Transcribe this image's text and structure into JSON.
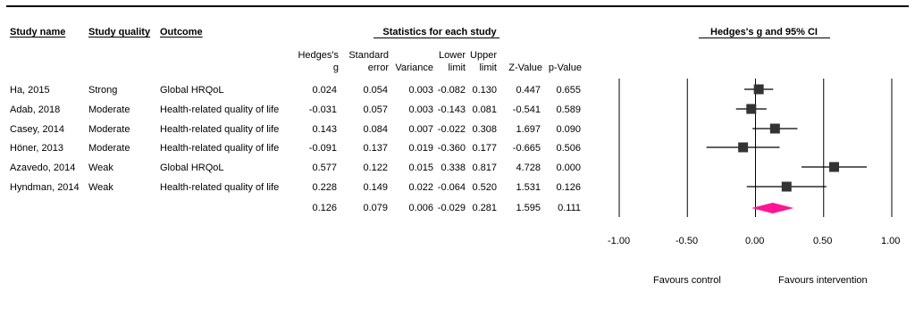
{
  "headers": {
    "study_name": "Study name",
    "study_quality": "Study quality",
    "outcome": "Outcome",
    "stats_group": "Statistics for each study",
    "plot_group": "Hedges's g and 95% CI"
  },
  "stat_columns": [
    {
      "line1": "Hedges's",
      "line2": "g"
    },
    {
      "line1": "Standard",
      "line2": "error"
    },
    {
      "line1": "",
      "line2": "Variance"
    },
    {
      "line1": "Lower",
      "line2": "limit"
    },
    {
      "line1": "Upper",
      "line2": "limit"
    },
    {
      "line1": "",
      "line2": "Z-Value"
    },
    {
      "line1": "",
      "line2": "p-Value"
    }
  ],
  "rows": [
    {
      "study": "Ha, 2015",
      "quality": "Strong",
      "outcome": "Global HRQoL",
      "g": "0.024",
      "se": "0.054",
      "var": "0.003",
      "lower": "-0.082",
      "upper": "0.130",
      "z": "0.447",
      "p": "0.655"
    },
    {
      "study": "Adab, 2018",
      "quality": "Moderate",
      "outcome": "Health-related quality of life",
      "g": "-0.031",
      "se": "0.057",
      "var": "0.003",
      "lower": "-0.143",
      "upper": "0.081",
      "z": "-0.541",
      "p": "0.589"
    },
    {
      "study": "Casey, 2014",
      "quality": "Moderate",
      "outcome": "Health-related quality of life",
      "g": "0.143",
      "se": "0.084",
      "var": "0.007",
      "lower": "-0.022",
      "upper": "0.308",
      "z": "1.697",
      "p": "0.090"
    },
    {
      "study": "Höner, 2013",
      "quality": "Moderate",
      "outcome": "Health-related quality of life",
      "g": "-0.091",
      "se": "0.137",
      "var": "0.019",
      "lower": "-0.360",
      "upper": "0.177",
      "z": "-0.665",
      "p": "0.506"
    },
    {
      "study": "Azavedo, 2014",
      "quality": "Weak",
      "outcome": "Global HRQoL",
      "g": "0.577",
      "se": "0.122",
      "var": "0.015",
      "lower": "0.338",
      "upper": "0.817",
      "z": "4.728",
      "p": "0.000"
    },
    {
      "study": "Hyndman, 2014",
      "quality": "Weak",
      "outcome": "Health-related quality of life",
      "g": "0.228",
      "se": "0.149",
      "var": "0.022",
      "lower": "-0.064",
      "upper": "0.520",
      "z": "1.531",
      "p": "0.126"
    }
  ],
  "summary": {
    "g": "0.126",
    "se": "0.079",
    "var": "0.006",
    "lower": "-0.029",
    "upper": "0.281",
    "z": "1.595",
    "p": "0.111"
  },
  "favours": {
    "left": "Favours control",
    "right": "Favours intervention"
  },
  "chart_data": {
    "type": "scatter",
    "title": "Hedges's g and 95% CI",
    "xlim": [
      -1.0,
      1.0
    ],
    "x_ticks": [
      "-1.00",
      "-0.50",
      "0.00",
      "0.50",
      "1.00"
    ],
    "x_tick_values": [
      -1.0,
      -0.5,
      0.0,
      0.5,
      1.0
    ],
    "reference_lines": [
      -1.0,
      -0.5,
      0.5,
      1.0
    ],
    "studies": [
      {
        "name": "Ha, 2015",
        "g": 0.024,
        "lower": -0.082,
        "upper": 0.13
      },
      {
        "name": "Adab, 2018",
        "g": -0.031,
        "lower": -0.143,
        "upper": 0.081
      },
      {
        "name": "Casey, 2014",
        "g": 0.143,
        "lower": -0.022,
        "upper": 0.308
      },
      {
        "name": "Höner, 2013",
        "g": -0.091,
        "lower": -0.36,
        "upper": 0.177
      },
      {
        "name": "Azavedo, 2014",
        "g": 0.577,
        "lower": 0.338,
        "upper": 0.817
      },
      {
        "name": "Hyndman, 2014",
        "g": 0.228,
        "lower": -0.064,
        "upper": 0.52
      }
    ],
    "summary": {
      "g": 0.126,
      "lower": -0.029,
      "upper": 0.281
    },
    "summary_color": "#ff1493",
    "marker_color": "#333333"
  }
}
